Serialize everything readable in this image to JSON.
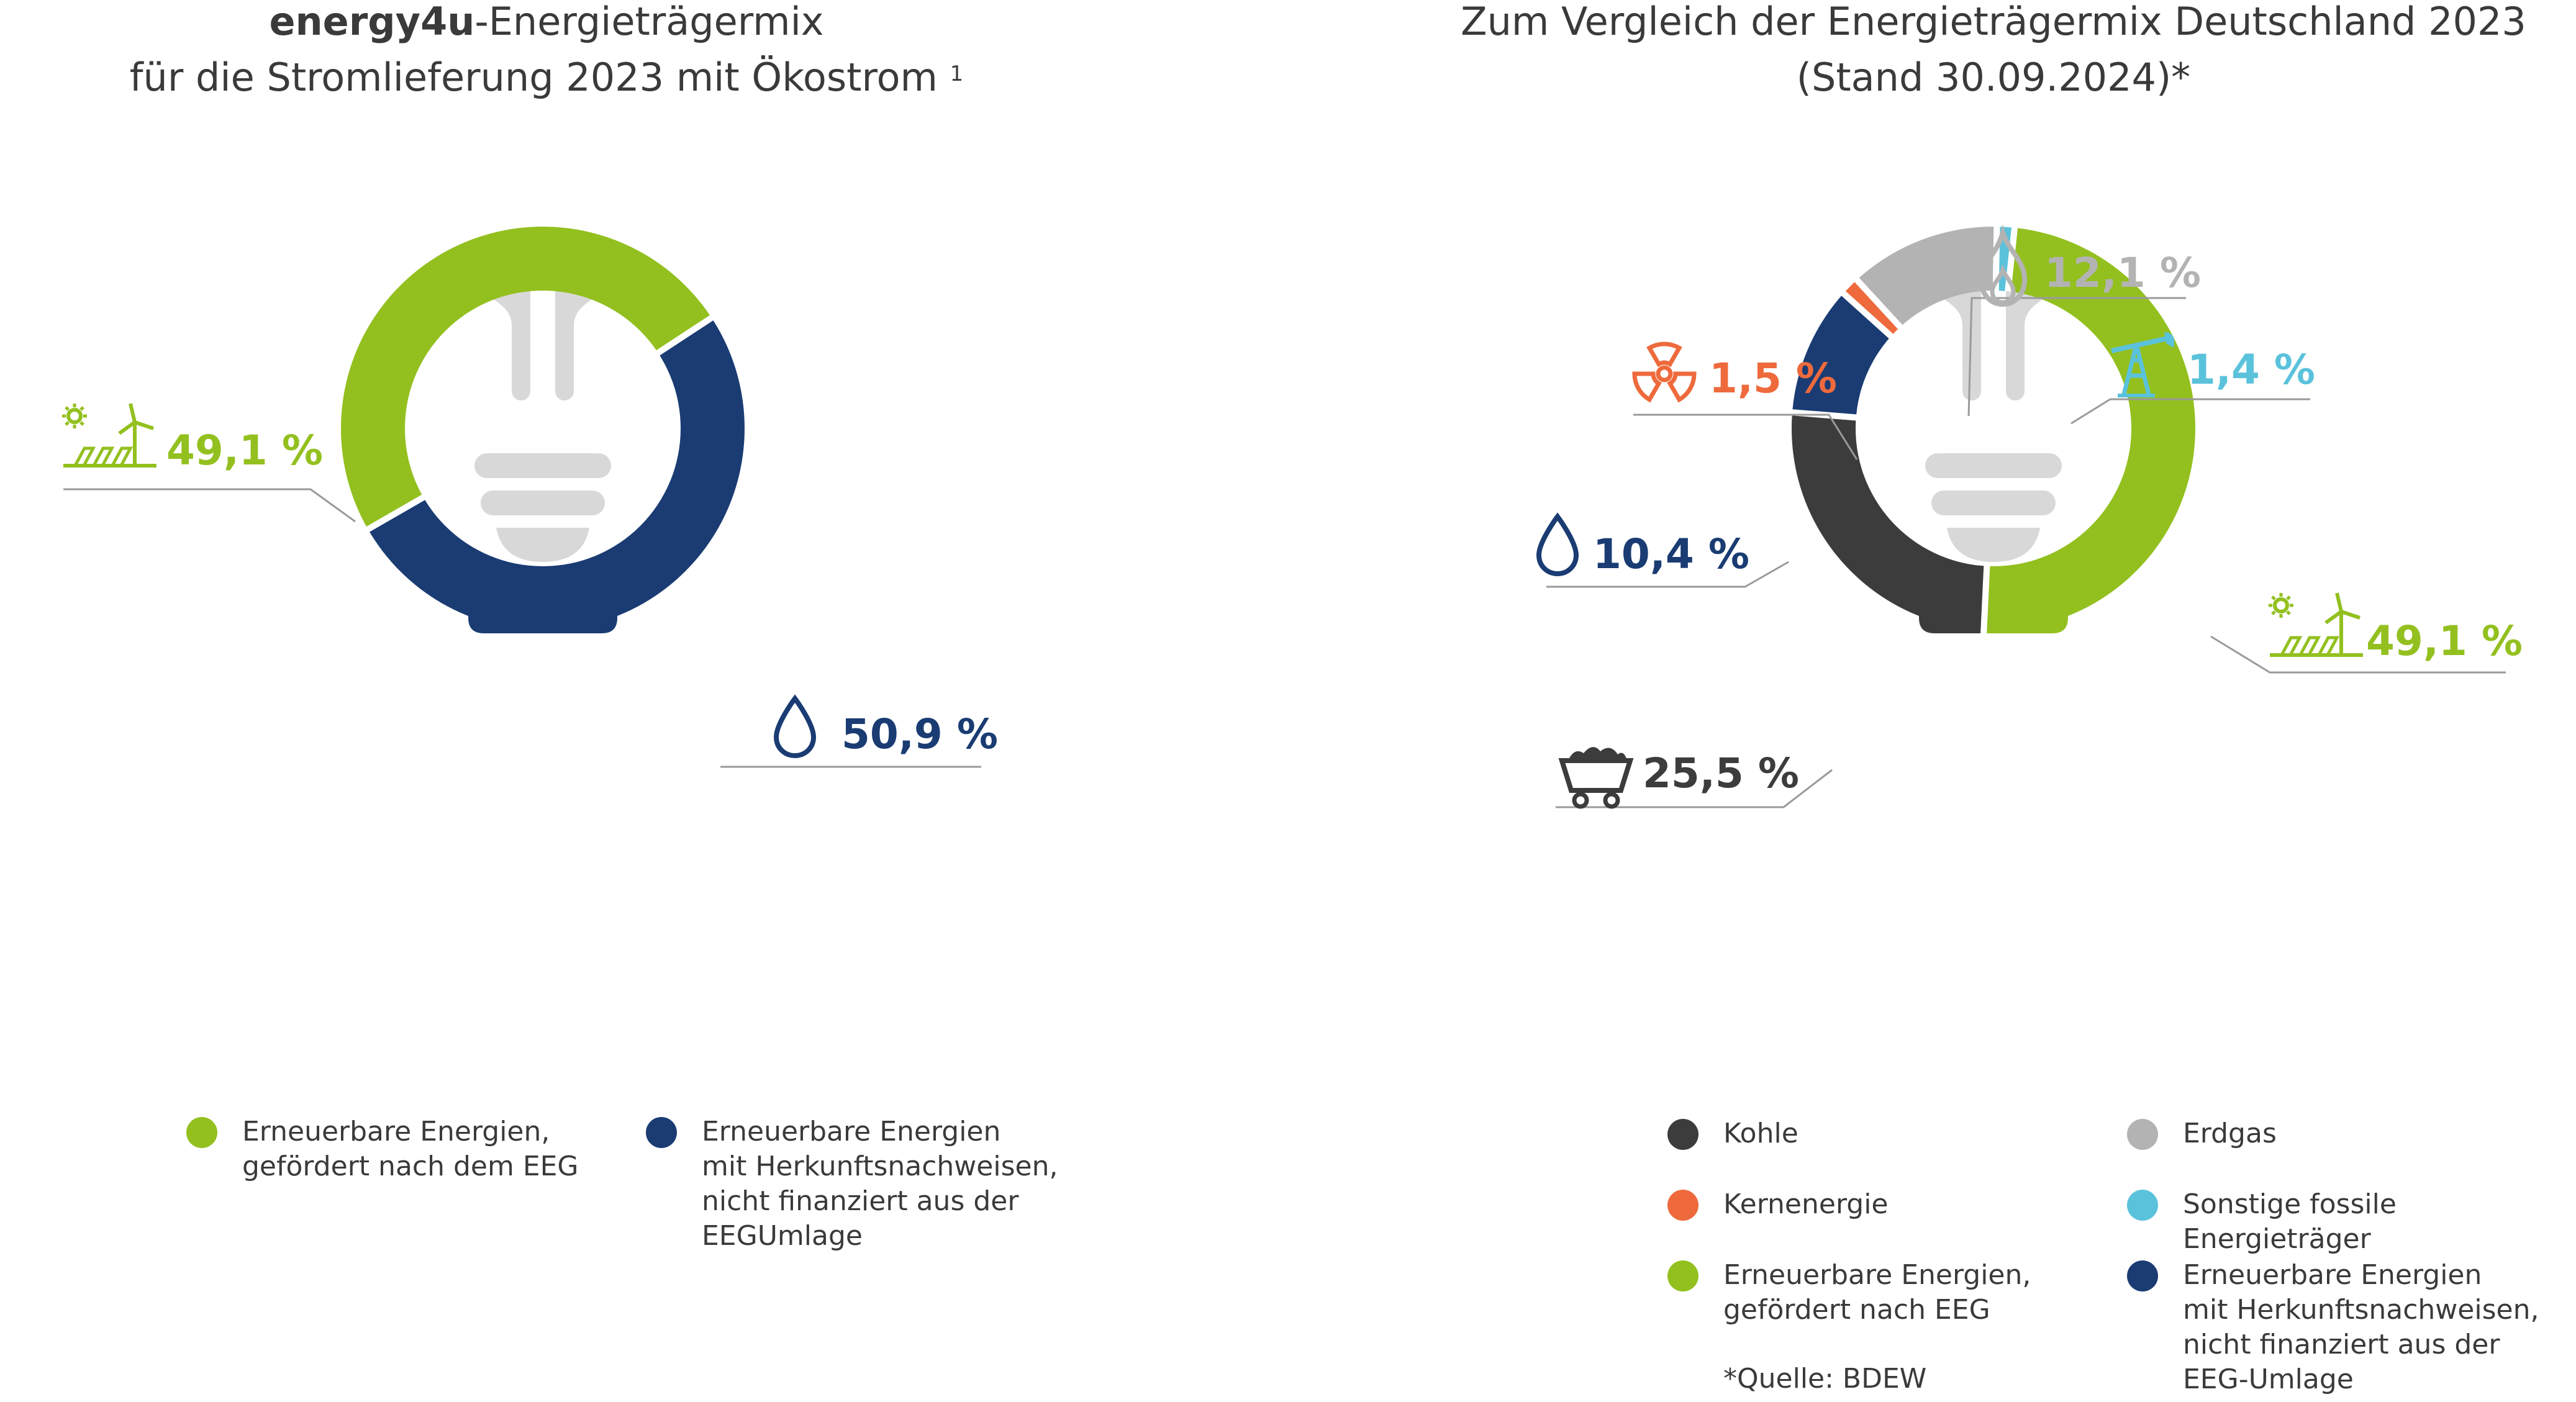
{
  "left": {
    "title_bold": "energy4u",
    "title_rest": "-Energieträgermix",
    "title_line2": "für die Stromlieferung 2023 mit Ökostrom",
    "title_sup": "1",
    "legend": [
      {
        "label": "Erneuerbare Energien,\ngefördert nach dem EEG",
        "color": "#93c01f"
      },
      {
        "label": "Erneuerbare Energien\nmit Herkunftsnachweisen,\nnicht finanziert aus der\nEEGUmlage",
        "color": "#1a3c73"
      }
    ]
  },
  "right": {
    "title_line1": "Zum Vergleich der Energieträgermix Deutschland 2023",
    "title_line2": "(Stand 30.09.2024)*",
    "legend": [
      {
        "label": "Kohle",
        "color": "#3c3c3c"
      },
      {
        "label": "Erdgas",
        "color": "#b3b3b3"
      },
      {
        "label": "Kernenergie",
        "color": "#ee6a3c"
      },
      {
        "label": "Sonstige fossile Energieträger",
        "color": "#5bc2dc"
      },
      {
        "label": "Erneuerbare Energien,\ngefördert nach EEG",
        "color": "#93c01f"
      },
      {
        "label": "Erneuerbare Energien\nmit Herkunftsnachweisen,\nnicht finanziert aus der\nEEG-Umlage",
        "color": "#1a3c73"
      }
    ],
    "source": "*Quelle: BDEW"
  },
  "chart_data": [
    {
      "type": "pie",
      "title": "energy4u-Energieträgermix für die Stromlieferung 2023 mit Ökostrom",
      "categories": [
        "Erneuerbare Energien, gefördert nach dem EEG",
        "Erneuerbare Energien mit Herkunftsnachweisen, nicht finanziert aus der EEGUmlage"
      ],
      "values": [
        49.1,
        50.9
      ],
      "labels": [
        "49,1 %",
        "50,9 %"
      ],
      "colors": [
        "#93c01f",
        "#1a3c73"
      ],
      "icons": [
        "solar-wind-icon",
        "water-drop-icon"
      ]
    },
    {
      "type": "pie",
      "title": "Zum Vergleich der Energieträgermix Deutschland 2023 (Stand 30.09.2024)*",
      "categories": [
        "Erneuerbare Energien, gefördert nach EEG",
        "Kohle",
        "Erneuerbare Energien mit Herkunftsnachweisen, nicht finanziert aus der EEG-Umlage",
        "Kernenergie",
        "Erdgas",
        "Sonstige fossile Energieträger"
      ],
      "values": [
        49.1,
        25.5,
        10.4,
        1.5,
        12.1,
        1.4
      ],
      "labels": [
        "49,1 %",
        "25,5 %",
        "10,4 %",
        "1,5 %",
        "12,1 %",
        "1,4 %"
      ],
      "colors": [
        "#93c01f",
        "#3c3c3c",
        "#1a3c73",
        "#ee6a3c",
        "#b3b3b3",
        "#5bc2dc"
      ],
      "icons": [
        "solar-wind-icon",
        "coal-cart-icon",
        "water-drop-icon",
        "radiation-icon",
        "flame-icon",
        "oil-pump-icon"
      ]
    }
  ]
}
